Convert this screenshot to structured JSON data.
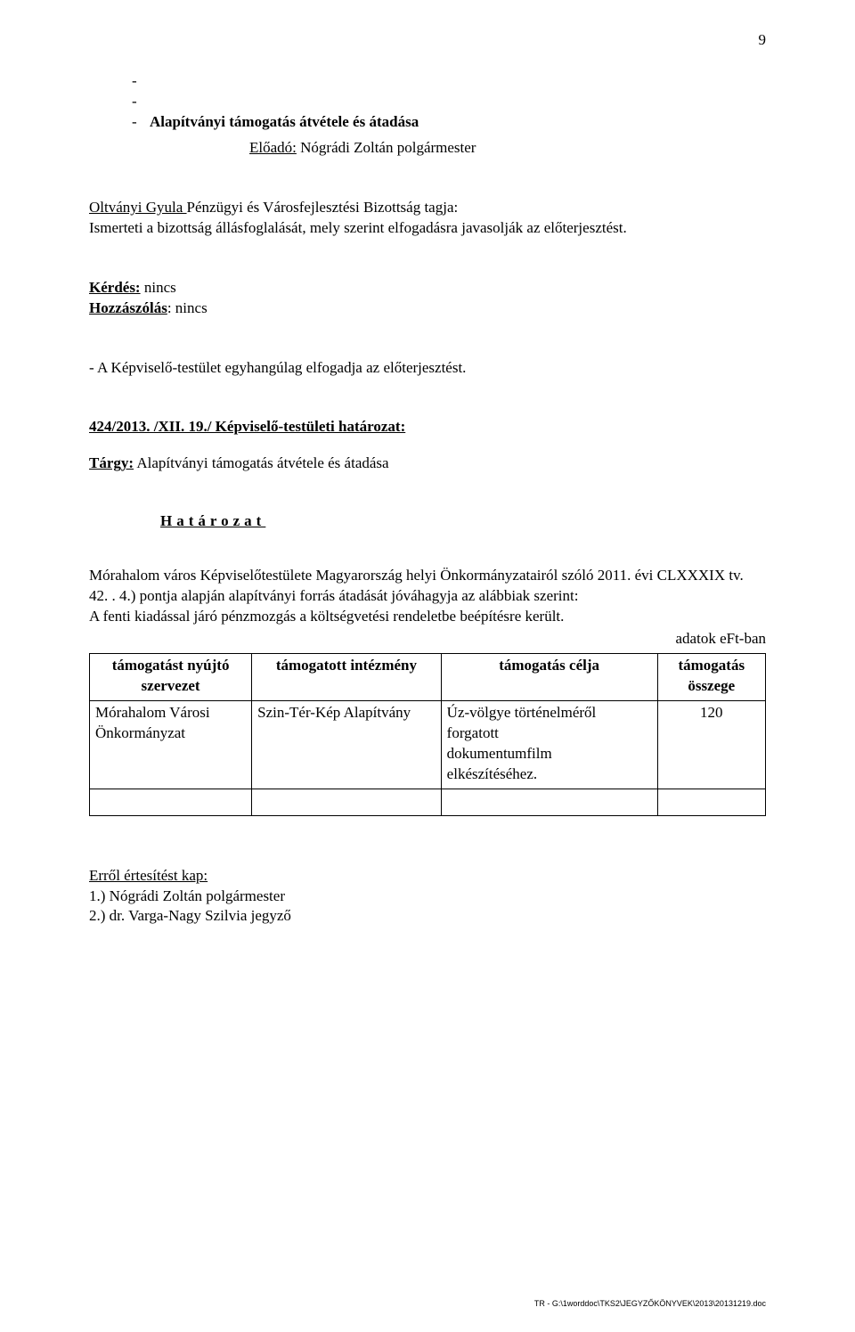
{
  "pageNumber": "9",
  "bulletEmpty": "",
  "bulletTitle": "Alapítványi támogatás átvétele és átadása",
  "presenterLabel": "Előadó:",
  "presenterName": " Nógrádi Zoltán polgármester",
  "intro": {
    "name": "Oltványi Gyula ",
    "role": " Pénzügyi és Városfejlesztési Bizottság tagja:",
    "text": "Ismerteti a bizottság állásfoglalását, mely szerint elfogadásra javasolják az előterjesztést."
  },
  "questionLabel": "Kérdés:",
  "questionValue": " nincs",
  "commentLabel": "Hozzászólás",
  "commentValue": ": nincs",
  "adoptText": "- A Képviselő-testület egyhangúlag elfogadja az előterjesztést.",
  "resolution": {
    "number": "424/2013. /XII. 19./ Képviselő-testületi határozat:",
    "subjectLabel": "Tárgy:",
    "subjectText": "  Alapítványi támogatás átvétele és átadása"
  },
  "decisionHeading": "Határozat",
  "bodyText": "Mórahalom város Képviselőtestülete Magyarország helyi Önkormányzatairól szóló 2011. évi CLXXXIX tv. 42. . 4.) pontja alapján alapítványi forrás átadását jóváhagyja az alábbiak szerint:",
  "bodyText2": "A fenti kiadással járó pénzmozgás a költségvetési rendeletbe beépítésre került.",
  "unitsText": "adatok eFt-ban",
  "table": {
    "headers": {
      "c1a": "támogatást nyújtó",
      "c1b": "szervezet",
      "c2": "támogatott intézmény",
      "c3": "támogatás célja",
      "c4a": "támogatás",
      "c4b": "összege"
    },
    "row": {
      "c1a": "Mórahalom Városi",
      "c1b": "Önkormányzat",
      "c2": "Szin-Tér-Kép Alapítvány",
      "c3_1": "Úz-völgye   történelméről",
      "c3_2": "forgatott",
      "c3_3": "dokumentumfilm",
      "c3_4": "elkészítéséhez.",
      "c4": "120"
    }
  },
  "notify": {
    "heading": "Erről értesítést kap:",
    "l1": "1.) Nógrádi Zoltán polgármester",
    "l2": "2.) dr. Varga-Nagy Szilvia  jegyző"
  },
  "footerPath": "TR - G:\\1worddoc\\TKS2\\JEGYZŐKÖNYVEK\\2013\\20131219.doc"
}
